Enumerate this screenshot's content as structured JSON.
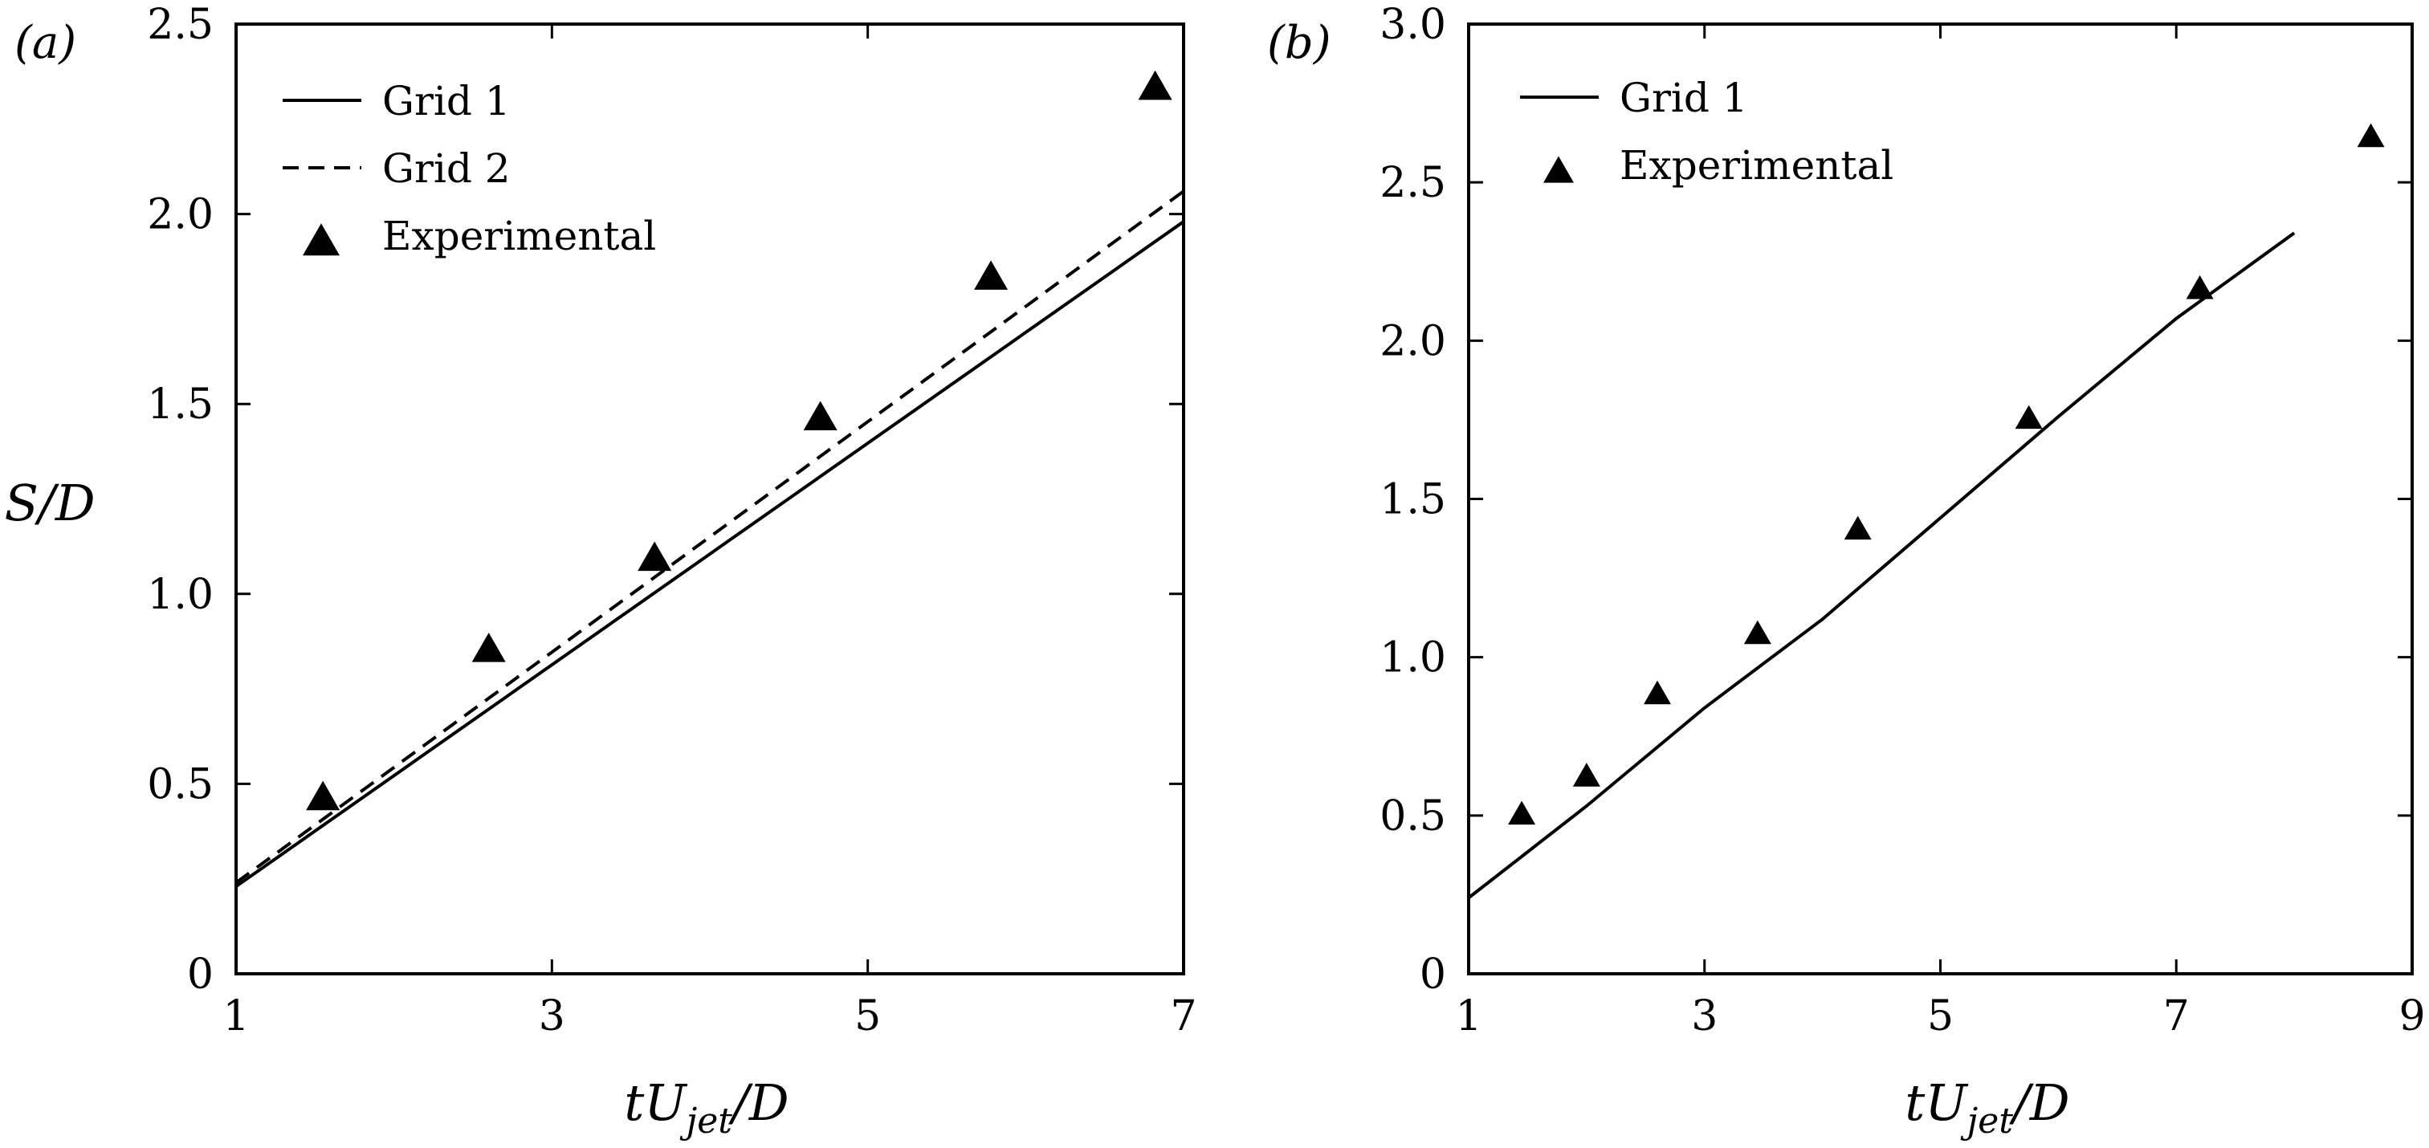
{
  "chart_data": [
    {
      "type": "line",
      "panel_label": "(a)",
      "xlabel": {
        "main": "tU",
        "sub": "jet",
        "tail": "/D"
      },
      "ylabel": "S/D",
      "xlim": [
        1,
        7
      ],
      "ylim": [
        0,
        2.5
      ],
      "x_ticks": [
        1,
        3,
        5,
        7
      ],
      "x_tick_labels": [
        "1",
        "3",
        "5",
        "7"
      ],
      "y_ticks": [
        0,
        0.5,
        1.0,
        1.5,
        2.0,
        2.5
      ],
      "y_tick_labels": [
        "0",
        "0.5",
        "1.0",
        "1.5",
        "2.0",
        "2.5"
      ],
      "legend_position": "top-left",
      "series": [
        {
          "name": "Grid 1",
          "style": "solid",
          "x": [
            1.0,
            7.0
          ],
          "y": [
            0.23,
            1.98
          ]
        },
        {
          "name": "Grid 2",
          "style": "dashed",
          "x": [
            1.0,
            7.0
          ],
          "y": [
            0.24,
            2.06
          ]
        },
        {
          "name": "Experimental",
          "style": "triangle",
          "x": [
            1.55,
            2.6,
            3.65,
            4.7,
            5.78,
            6.82
          ],
          "y": [
            0.46,
            0.85,
            1.09,
            1.46,
            1.83,
            2.33
          ]
        }
      ]
    },
    {
      "type": "line",
      "panel_label": "(b)",
      "xlabel": {
        "main": "tU",
        "sub": "jet",
        "tail": "/D"
      },
      "ylabel": "",
      "xlim": [
        1,
        9
      ],
      "ylim": [
        0,
        3.0
      ],
      "x_ticks": [
        1,
        3,
        5,
        7,
        9
      ],
      "x_tick_labels": [
        "1",
        "3",
        "5",
        "7",
        "9"
      ],
      "y_ticks": [
        0,
        0.5,
        1.0,
        1.5,
        2.0,
        2.5,
        3.0
      ],
      "y_tick_labels": [
        "0",
        "0.5",
        "1.0",
        "1.5",
        "2.0",
        "2.5",
        "3.0"
      ],
      "legend_position": "top-left",
      "series": [
        {
          "name": "Grid 1",
          "style": "solid",
          "x": [
            1.0,
            2.0,
            3.0,
            4.0,
            5.0,
            6.0,
            7.0,
            8.0
          ],
          "y": [
            0.24,
            0.53,
            0.84,
            1.12,
            1.44,
            1.76,
            2.07,
            2.34
          ]
        },
        {
          "name": "Experimental",
          "style": "triangle",
          "x": [
            1.45,
            2.0,
            2.6,
            3.45,
            4.3,
            5.75,
            7.2,
            8.65
          ],
          "y": [
            0.5,
            0.62,
            0.88,
            1.07,
            1.4,
            1.75,
            2.16,
            2.64
          ]
        }
      ]
    }
  ]
}
